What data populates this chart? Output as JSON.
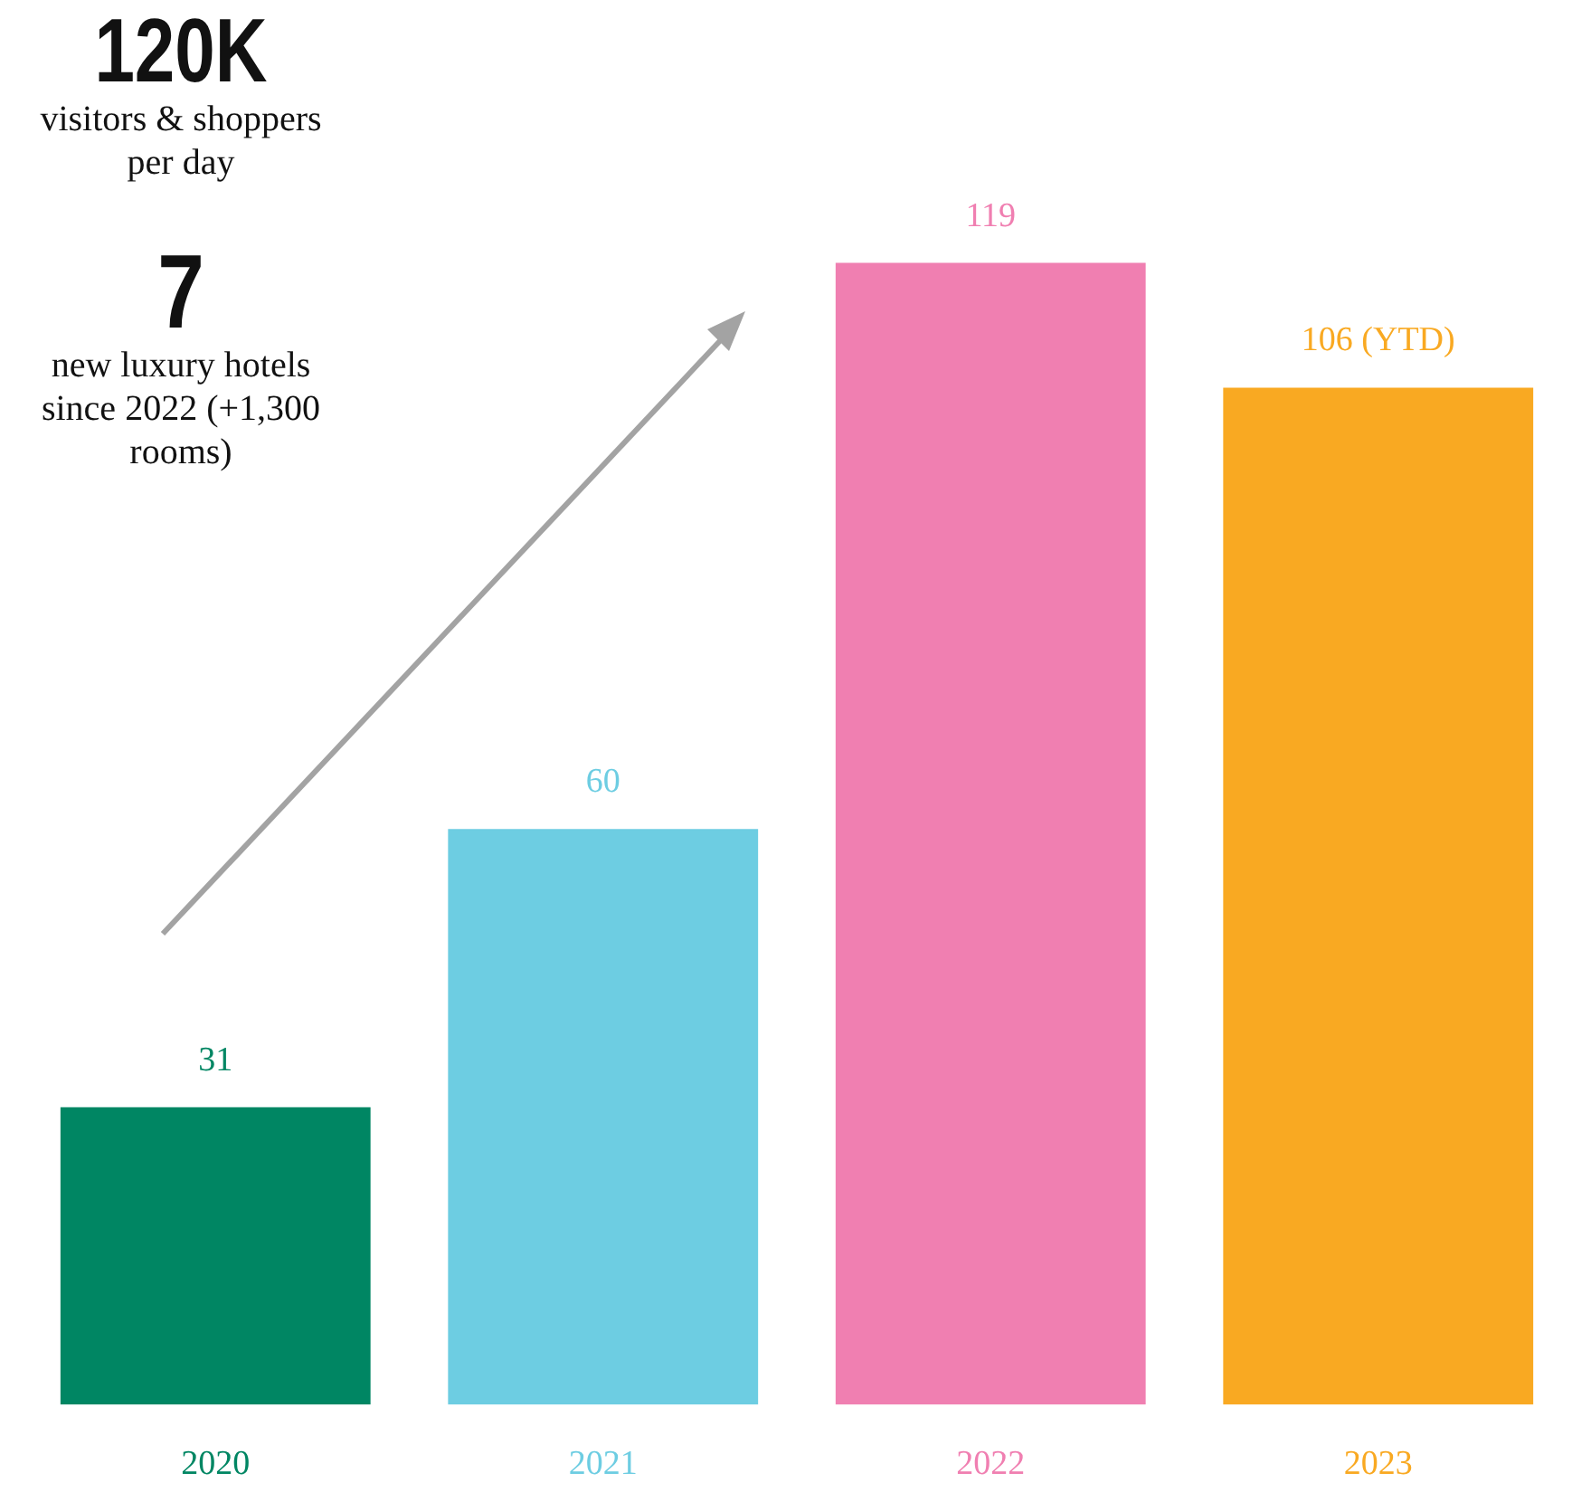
{
  "chart_data": {
    "type": "bar",
    "categories": [
      "2020",
      "2021",
      "2022",
      "2023"
    ],
    "values": [
      31,
      60,
      119,
      106
    ],
    "colors": [
      "#008663",
      "#6dcde2",
      "#f07fb1",
      "#f9a922"
    ],
    "value_labels": [
      "31",
      "60",
      "119",
      "106 (YTD)"
    ],
    "annotations": [
      "120K",
      "visitors & shoppers per day",
      "7",
      "new luxury hotels since 2022 (+1,300 rooms)"
    ]
  }
}
